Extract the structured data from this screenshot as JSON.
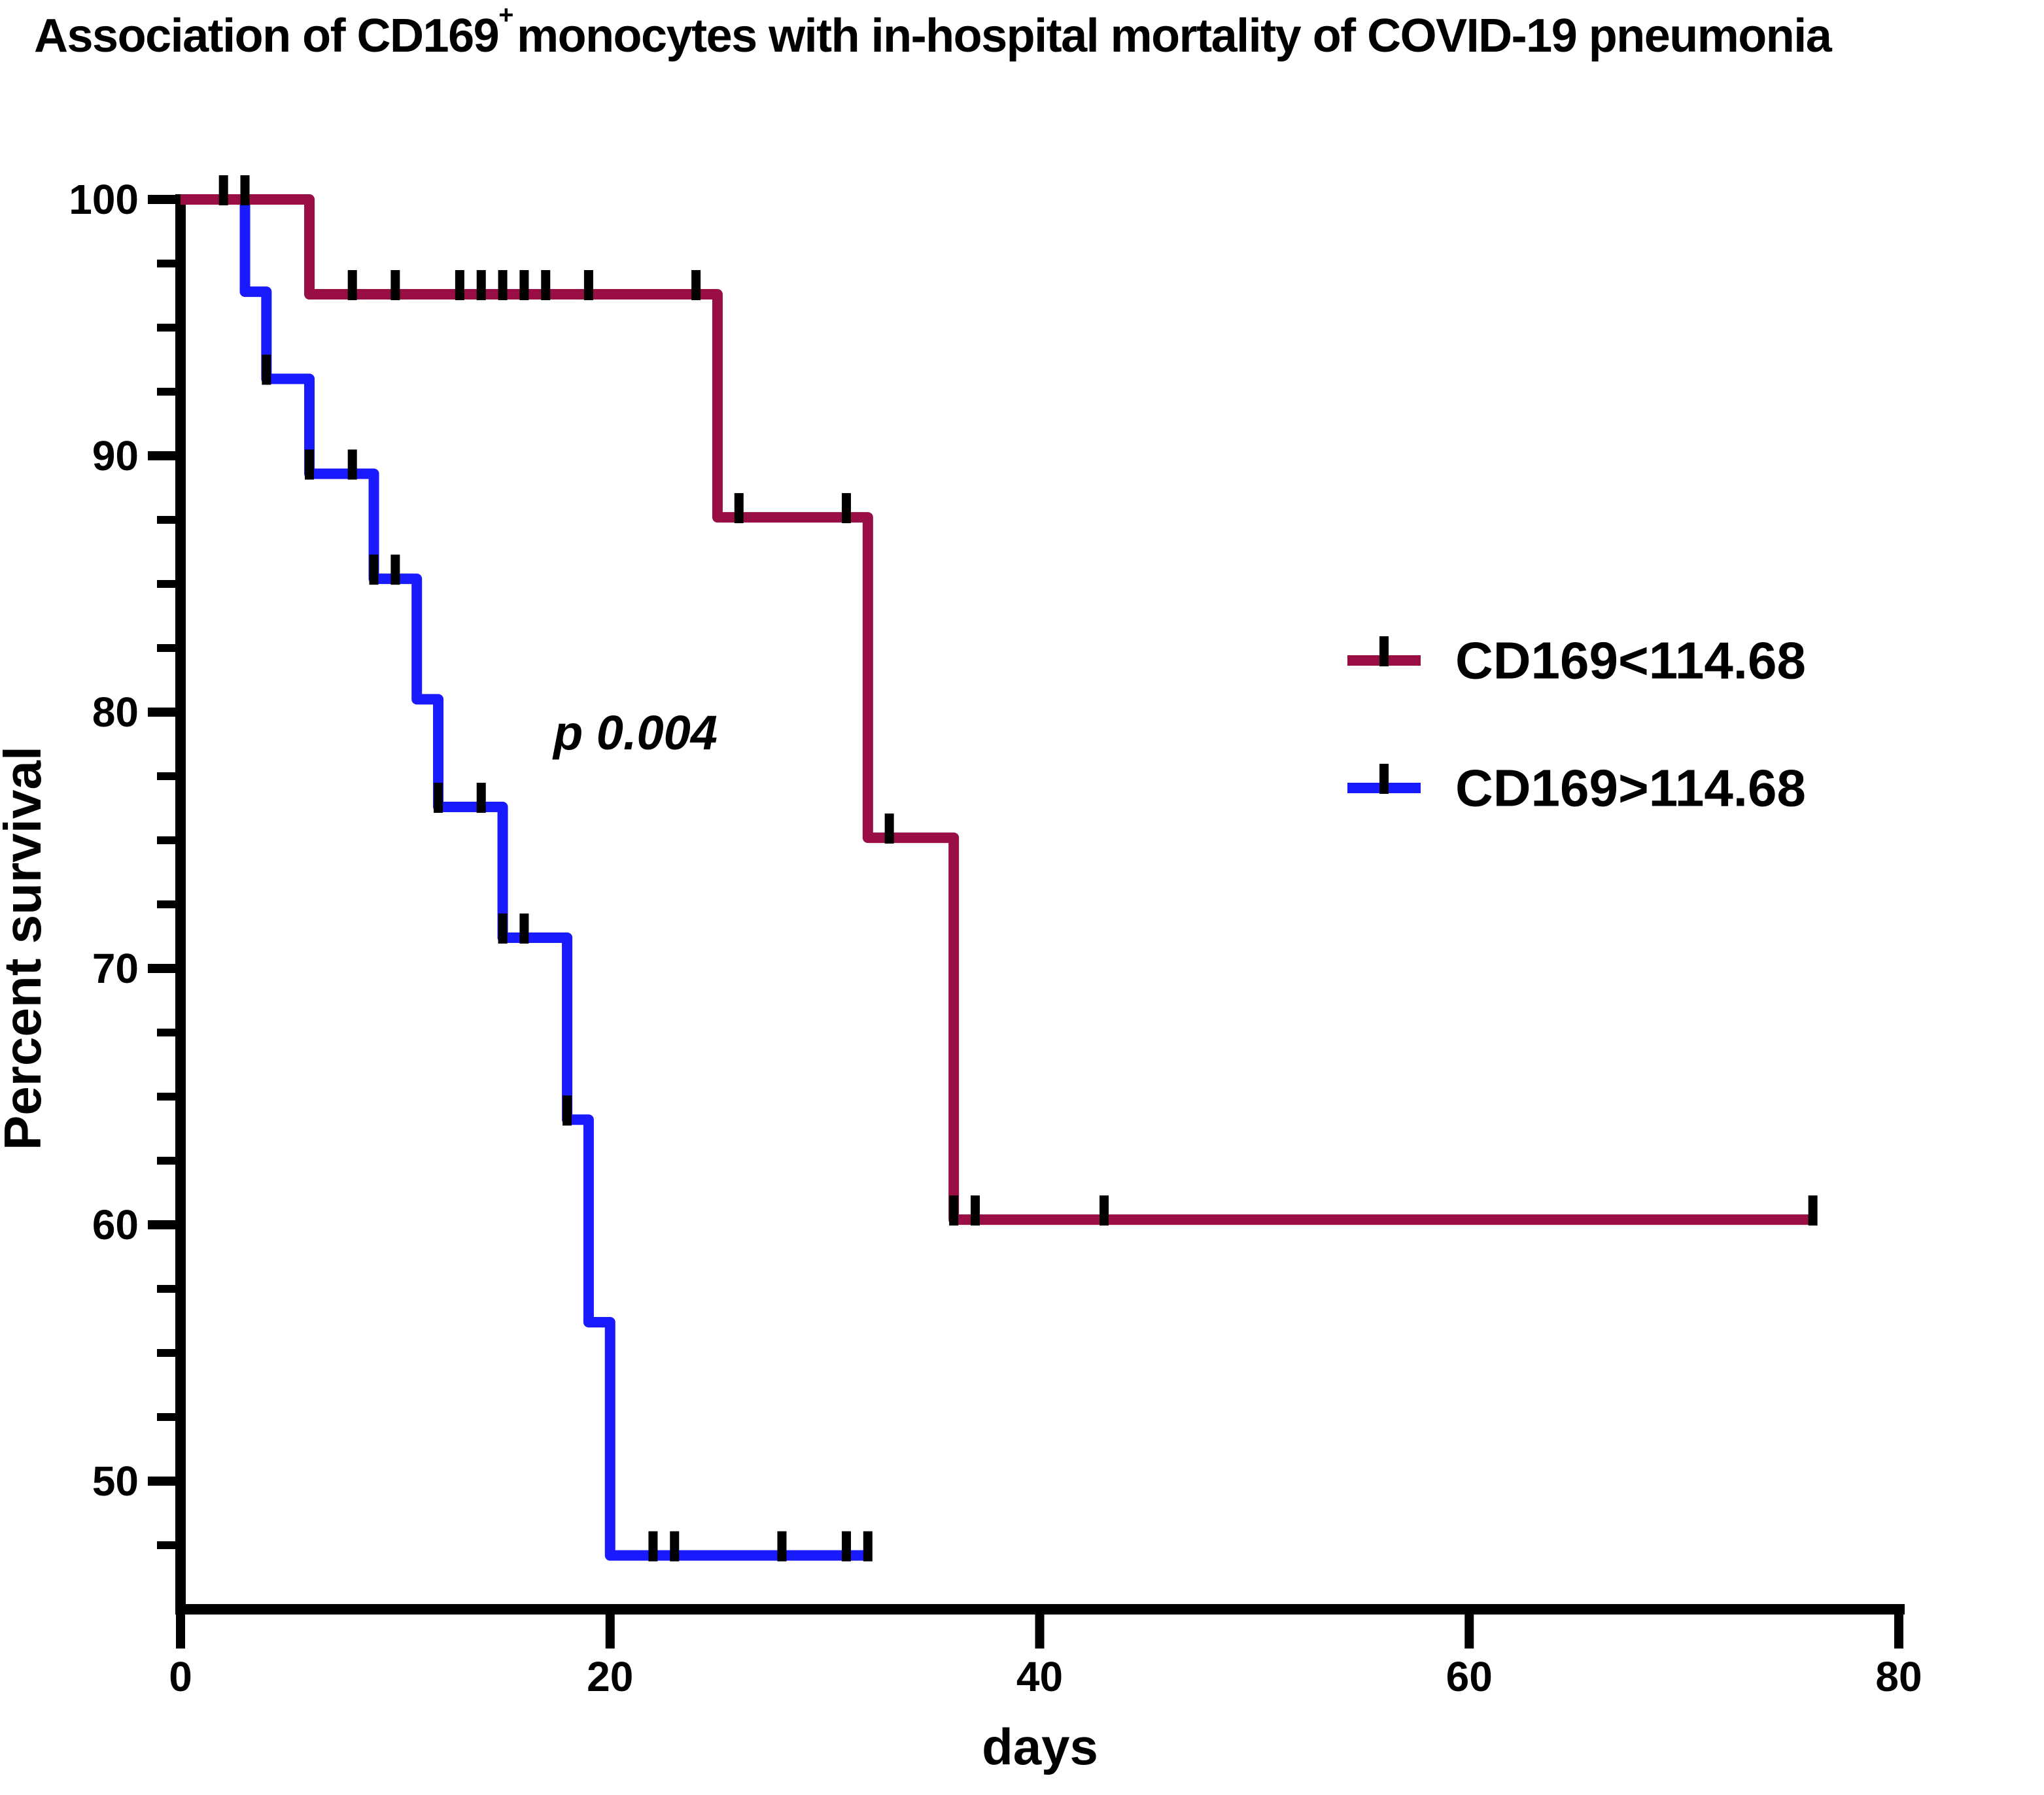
{
  "title": {
    "prefix": "Association of CD169",
    "superscript": "+",
    "suffix": "monocytes with in-hospital mortality of COVID-19 pneumonia"
  },
  "annotation": {
    "p_value": "p 0.004"
  },
  "axes": {
    "x_label": "days",
    "y_label": "Percent survival",
    "x_tick_labels": [
      "0",
      "20",
      "40",
      "60",
      "80"
    ],
    "y_tick_labels": [
      "100",
      "90",
      "80",
      "70",
      "60",
      "50"
    ]
  },
  "legend": {
    "items": [
      {
        "label": "CD169<114.68",
        "color": "#990F45"
      },
      {
        "label": "CD169>114.68",
        "color": "#1A1AFF"
      }
    ]
  },
  "chart_data": {
    "type": "line",
    "subtype": "kaplan-meier-step",
    "title": "Association of CD169+ monocytes with in-hospital mortality of COVID-19 pneumonia",
    "xlabel": "days",
    "ylabel": "Percent survival",
    "xlim": [
      0,
      80
    ],
    "ylim": [
      45,
      100
    ],
    "grid": false,
    "legend_position": "right-middle",
    "x_ticks": [
      0,
      20,
      40,
      60,
      80
    ],
    "y_ticks_major": [
      100,
      90,
      80,
      70,
      60,
      50
    ],
    "y_ticks_minor": [
      97.5,
      95,
      92.5,
      87.5,
      85,
      82.5,
      77.5,
      75,
      72.5,
      67.5,
      65,
      62.5,
      57.5,
      55,
      52.5,
      47.5
    ],
    "p_value_text": "p 0.004",
    "series": [
      {
        "name": "CD169<114.68",
        "color": "#990F45",
        "start": [
          0,
          100
        ],
        "steps": [
          {
            "day": 6,
            "survival": 96.3
          },
          {
            "day": 25,
            "survival": 87.6
          },
          {
            "day": 32,
            "survival": 75.1
          },
          {
            "day": 36,
            "survival": 60.2
          }
        ],
        "end_day": 76,
        "censors": [
          {
            "day": 2,
            "survival": 100
          },
          {
            "day": 3,
            "survival": 100
          },
          {
            "day": 8,
            "survival": 96.3
          },
          {
            "day": 10,
            "survival": 96.3
          },
          {
            "day": 13,
            "survival": 96.3
          },
          {
            "day": 14,
            "survival": 96.3
          },
          {
            "day": 15,
            "survival": 96.3
          },
          {
            "day": 16,
            "survival": 96.3
          },
          {
            "day": 17,
            "survival": 96.3
          },
          {
            "day": 19,
            "survival": 96.3
          },
          {
            "day": 24,
            "survival": 96.3
          },
          {
            "day": 26,
            "survival": 87.6
          },
          {
            "day": 31,
            "survival": 87.6
          },
          {
            "day": 33,
            "survival": 75.1
          },
          {
            "day": 36,
            "survival": 60.2
          },
          {
            "day": 37,
            "survival": 60.2
          },
          {
            "day": 43,
            "survival": 60.2
          },
          {
            "day": 76,
            "survival": 60.2
          }
        ]
      },
      {
        "name": "CD169>114.68",
        "color": "#1A1AFF",
        "start": [
          0,
          100
        ],
        "steps": [
          {
            "day": 3,
            "survival": 96.4
          },
          {
            "day": 4,
            "survival": 93.0
          },
          {
            "day": 6,
            "survival": 89.3
          },
          {
            "day": 9,
            "survival": 85.2
          },
          {
            "day": 11,
            "survival": 80.5
          },
          {
            "day": 12,
            "survival": 76.3
          },
          {
            "day": 15,
            "survival": 71.2
          },
          {
            "day": 18,
            "survival": 64.1
          },
          {
            "day": 19,
            "survival": 56.2
          },
          {
            "day": 20,
            "survival": 47.1
          }
        ],
        "end_day": 32,
        "censors": [
          {
            "day": 4,
            "survival": 93.0
          },
          {
            "day": 6,
            "survival": 89.3
          },
          {
            "day": 8,
            "survival": 89.3
          },
          {
            "day": 9,
            "survival": 85.2
          },
          {
            "day": 10,
            "survival": 85.2
          },
          {
            "day": 12,
            "survival": 76.3
          },
          {
            "day": 14,
            "survival": 76.3
          },
          {
            "day": 15,
            "survival": 71.2
          },
          {
            "day": 16,
            "survival": 71.2
          },
          {
            "day": 18,
            "survival": 64.1
          },
          {
            "day": 22,
            "survival": 47.1
          },
          {
            "day": 23,
            "survival": 47.1
          },
          {
            "day": 28,
            "survival": 47.1
          },
          {
            "day": 31,
            "survival": 47.1
          },
          {
            "day": 32,
            "survival": 47.1
          }
        ]
      }
    ]
  }
}
